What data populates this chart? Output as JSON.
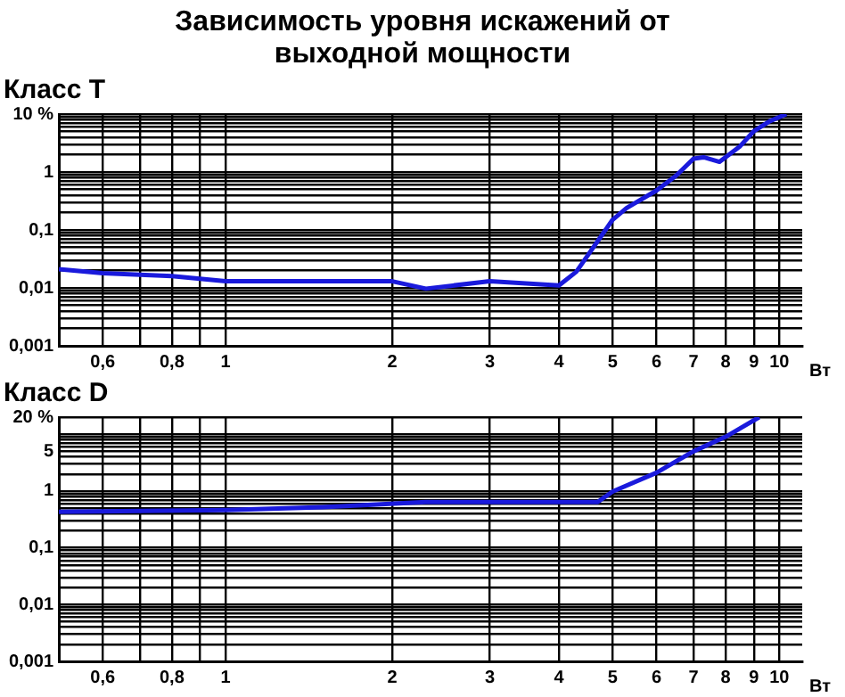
{
  "chart_data": [
    {
      "type": "line",
      "title": "Зависимость уровня искажений от выходной мощности",
      "subtitle": "Класс T",
      "xlabel": "Вт",
      "log": "xy",
      "grid": true,
      "legend": false,
      "marker": "none",
      "line_style": "solid",
      "xlim": [
        0.5,
        11
      ],
      "ylim": [
        0.001,
        10
      ],
      "xticks": [
        {
          "value": 0.5,
          "label": null
        },
        {
          "value": 0.6,
          "label": "0,6"
        },
        {
          "value": 0.7,
          "label": null
        },
        {
          "value": 0.8,
          "label": "0,8"
        },
        {
          "value": 0.9,
          "label": null
        },
        1,
        2,
        3,
        4,
        5,
        6,
        7,
        8,
        9,
        10
      ],
      "yticks": [
        {
          "value": 0.001,
          "label": "0,001"
        },
        {
          "value": 0.002,
          "label": null
        },
        {
          "value": 0.003,
          "label": null
        },
        {
          "value": 0.004,
          "label": null
        },
        {
          "value": 0.005,
          "label": null
        },
        {
          "value": 0.006,
          "label": null
        },
        {
          "value": 0.007,
          "label": null
        },
        {
          "value": 0.008,
          "label": null
        },
        {
          "value": 0.009,
          "label": null
        },
        {
          "value": 0.01,
          "label": "0,01"
        },
        {
          "value": 0.02,
          "label": null
        },
        {
          "value": 0.03,
          "label": null
        },
        {
          "value": 0.04,
          "label": null
        },
        {
          "value": 0.05,
          "label": null
        },
        {
          "value": 0.06,
          "label": null
        },
        {
          "value": 0.07,
          "label": null
        },
        {
          "value": 0.08,
          "label": null
        },
        {
          "value": 0.09,
          "label": null
        },
        {
          "value": 0.1,
          "label": "0,1"
        },
        {
          "value": 0.2,
          "label": null
        },
        {
          "value": 0.3,
          "label": null
        },
        {
          "value": 0.4,
          "label": null
        },
        {
          "value": 0.5,
          "label": null
        },
        {
          "value": 0.6,
          "label": null
        },
        {
          "value": 0.7,
          "label": null
        },
        {
          "value": 0.8,
          "label": null
        },
        {
          "value": 0.9,
          "label": null
        },
        {
          "value": 1,
          "label": "1"
        },
        {
          "value": 2,
          "label": null
        },
        {
          "value": 3,
          "label": null
        },
        {
          "value": 4,
          "label": null
        },
        {
          "value": 5,
          "label": null
        },
        {
          "value": 6,
          "label": null
        },
        {
          "value": 7,
          "label": null
        },
        {
          "value": 8,
          "label": null
        },
        {
          "value": 9,
          "label": null
        },
        {
          "value": 10,
          "label": "10 %"
        }
      ],
      "series": [
        {
          "color": "#1a1adc",
          "x": [
            0.5,
            0.6,
            0.8,
            1,
            2,
            2.3,
            3,
            4,
            4.3,
            5,
            5.3,
            6,
            6.5,
            7,
            7.3,
            7.8,
            8.5,
            9,
            9.6,
            10.3
          ],
          "values": [
            0.021,
            0.018,
            0.016,
            0.013,
            0.013,
            0.0097,
            0.013,
            0.011,
            0.019,
            0.15,
            0.24,
            0.48,
            0.85,
            1.7,
            1.8,
            1.5,
            2.8,
            5.1,
            7.5,
            10
          ]
        }
      ]
    },
    {
      "type": "line",
      "title": "Класс D",
      "xlabel": "Вт",
      "log": "xy",
      "grid": true,
      "legend": false,
      "marker": "none",
      "line_style": "solid",
      "xlim": [
        0.5,
        11
      ],
      "ylim": [
        0.001,
        20
      ],
      "xticks": [
        {
          "value": 0.5,
          "label": null
        },
        {
          "value": 0.6,
          "label": "0,6"
        },
        {
          "value": 0.7,
          "label": null
        },
        {
          "value": 0.8,
          "label": "0,8"
        },
        {
          "value": 0.9,
          "label": null
        },
        1,
        2,
        3,
        4,
        5,
        6,
        7,
        8,
        9,
        10
      ],
      "yticks": [
        {
          "value": 0.001,
          "label": "0,001"
        },
        {
          "value": 0.002,
          "label": null
        },
        {
          "value": 0.003,
          "label": null
        },
        {
          "value": 0.004,
          "label": null
        },
        {
          "value": 0.005,
          "label": null
        },
        {
          "value": 0.006,
          "label": null
        },
        {
          "value": 0.007,
          "label": null
        },
        {
          "value": 0.008,
          "label": null
        },
        {
          "value": 0.009,
          "label": null
        },
        {
          "value": 0.01,
          "label": "0,01"
        },
        {
          "value": 0.02,
          "label": null
        },
        {
          "value": 0.03,
          "label": null
        },
        {
          "value": 0.04,
          "label": null
        },
        {
          "value": 0.05,
          "label": null
        },
        {
          "value": 0.06,
          "label": null
        },
        {
          "value": 0.07,
          "label": null
        },
        {
          "value": 0.08,
          "label": null
        },
        {
          "value": 0.09,
          "label": null
        },
        {
          "value": 0.1,
          "label": "0,1"
        },
        {
          "value": 0.2,
          "label": null
        },
        {
          "value": 0.3,
          "label": null
        },
        {
          "value": 0.4,
          "label": null
        },
        {
          "value": 0.5,
          "label": null
        },
        {
          "value": 0.6,
          "label": null
        },
        {
          "value": 0.7,
          "label": null
        },
        {
          "value": 0.8,
          "label": null
        },
        {
          "value": 0.9,
          "label": null
        },
        {
          "value": 1,
          "label": "1"
        },
        {
          "value": 2,
          "label": null
        },
        {
          "value": 3,
          "label": null
        },
        {
          "value": 4,
          "label": null
        },
        {
          "value": 5,
          "label": "5"
        },
        {
          "value": 6,
          "label": null
        },
        {
          "value": 7,
          "label": null
        },
        {
          "value": 8,
          "label": null
        },
        {
          "value": 9,
          "label": null
        },
        {
          "value": 10,
          "label": null
        },
        {
          "value": 20,
          "label": "20 %"
        }
      ],
      "series": [
        {
          "color": "#1a1adc",
          "x": [
            0.5,
            1,
            1.5,
            2.3,
            3,
            4.7,
            5,
            6,
            7,
            8,
            9.2
          ],
          "values": [
            0.43,
            0.46,
            0.52,
            0.64,
            0.64,
            0.64,
            0.98,
            2.1,
            5,
            9,
            20
          ]
        }
      ]
    }
  ]
}
